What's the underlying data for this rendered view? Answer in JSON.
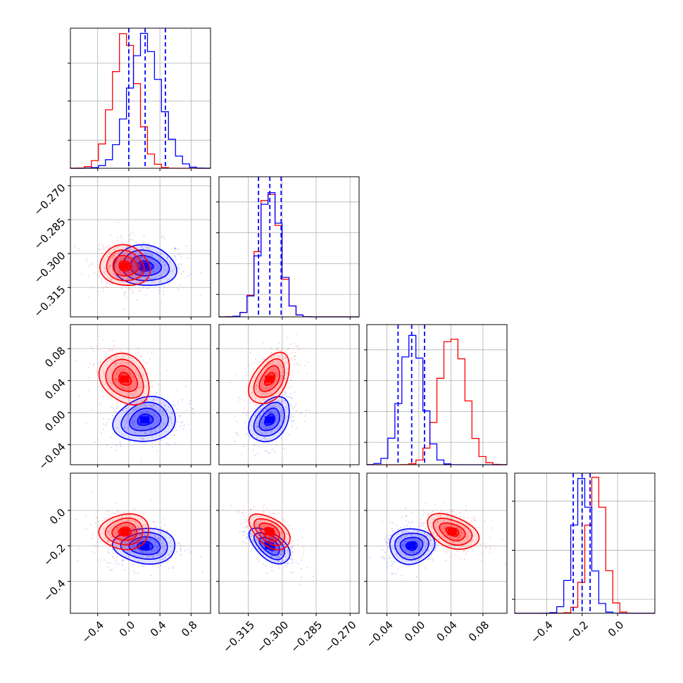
{
  "chart_data": {
    "type": "corner",
    "grid": true,
    "colors": {
      "series_a": "#0000ff",
      "series_b": "#ff0000"
    },
    "parameters": [
      {
        "range": [
          -0.75,
          1.05
        ],
        "ticks": [
          -0.4,
          0.0,
          0.4,
          0.8
        ],
        "tick_labels": [
          "−0.4",
          "0.0",
          "0.4",
          "0.8"
        ],
        "mean_a": 0.21,
        "sd_a": 0.2,
        "mean_b": -0.05,
        "sd_b": 0.16,
        "quantiles_a": [
          0.0,
          0.21,
          0.47
        ]
      },
      {
        "range": [
          -0.328,
          -0.266
        ],
        "ticks": [
          -0.315,
          -0.3,
          -0.285,
          -0.27
        ],
        "tick_labels": [
          "−0.315",
          "−0.300",
          "−0.285",
          "−0.270"
        ],
        "mean_a": -0.3055,
        "sd_a": 0.0045,
        "mean_b": -0.3055,
        "sd_b": 0.0045,
        "quantiles_a": [
          -0.3105,
          -0.3055,
          -0.3005
        ]
      },
      {
        "range": [
          -0.065,
          0.11
        ],
        "ticks": [
          -0.04,
          0.0,
          0.04,
          0.08
        ],
        "tick_labels": [
          "−0.04",
          "0.00",
          "0.04",
          "0.08"
        ],
        "mean_a": -0.009,
        "sd_a": 0.014,
        "mean_b": 0.042,
        "sd_b": 0.016,
        "quantiles_a": [
          -0.026,
          -0.009,
          0.007
        ]
      },
      {
        "range": [
          -0.58,
          0.21
        ],
        "ticks": [
          -0.4,
          -0.2,
          0.0
        ],
        "tick_labels": [
          "−0.4",
          "−0.2",
          "0.0"
        ],
        "mean_a": -0.2,
        "sd_a": 0.05,
        "mean_b": -0.12,
        "sd_b": 0.05,
        "quantiles_a": [
          -0.25,
          -0.2,
          -0.155
        ]
      }
    ],
    "correlations": {
      "a": {
        "1-0": -0.1,
        "2-0": 0.15,
        "2-1": 0.35,
        "3-0": -0.05,
        "3-1": -0.55,
        "3-2": 0.05
      },
      "b": {
        "1-0": -0.1,
        "2-0": -0.25,
        "2-1": 0.45,
        "3-0": 0.05,
        "3-1": -0.5,
        "3-2": -0.4
      }
    }
  }
}
